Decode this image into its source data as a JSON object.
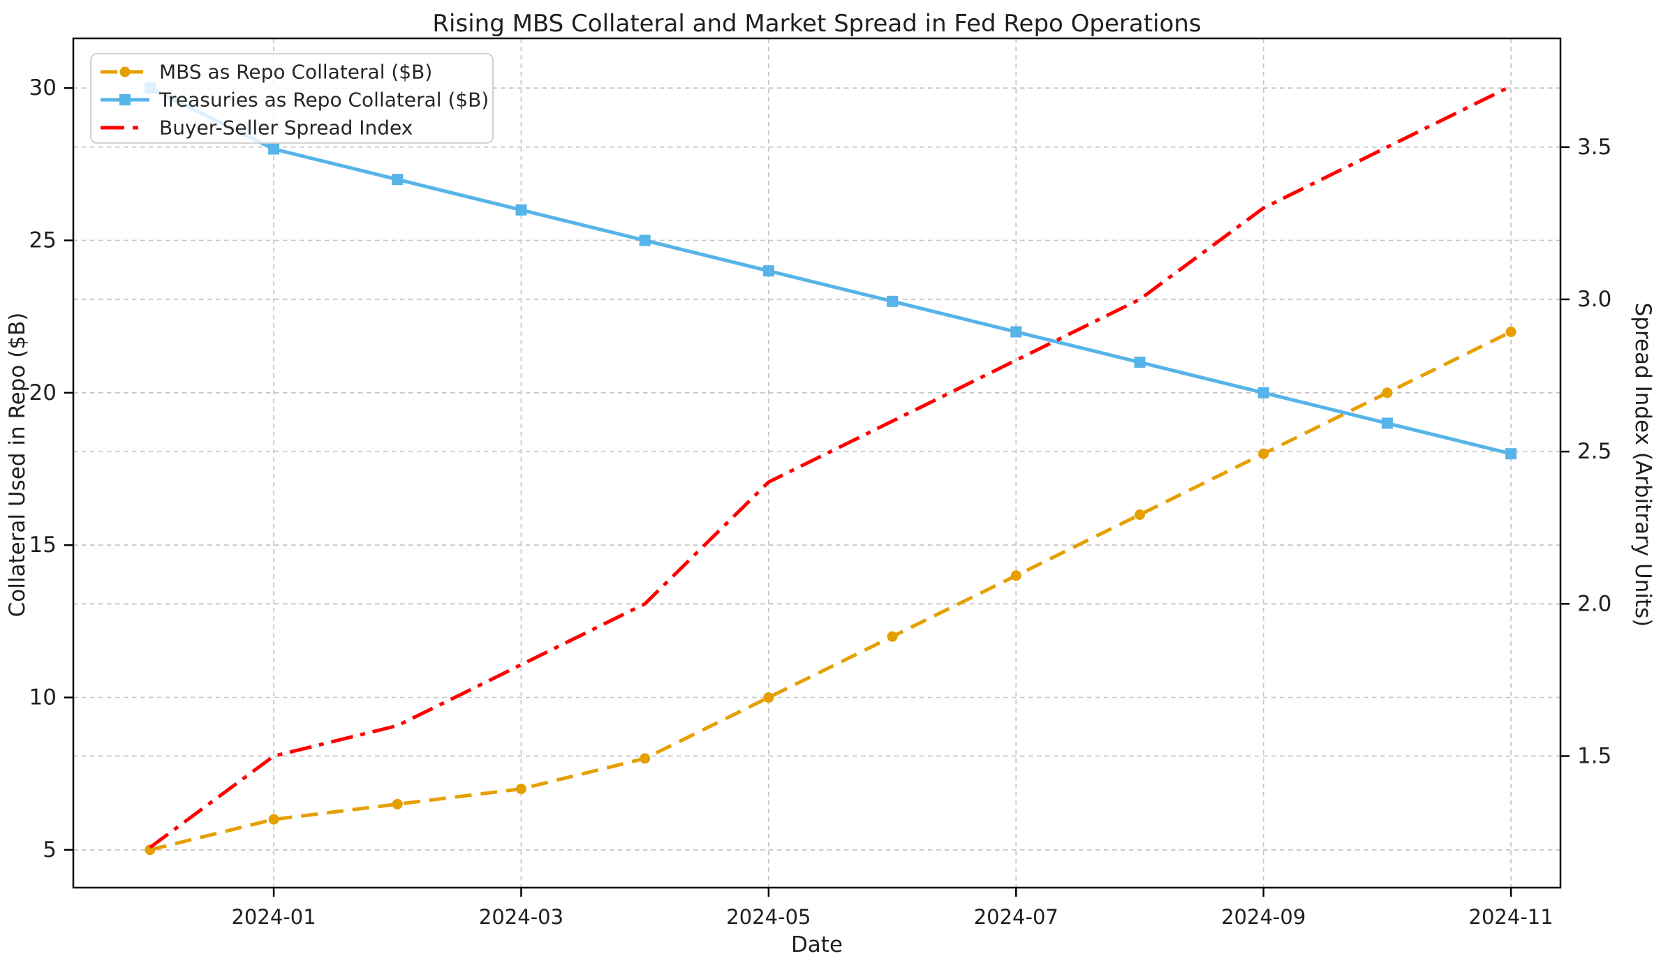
{
  "figure": {
    "title": "Rising MBS Collateral and Market Spread in Fed Repo Operations"
  },
  "chart_data": {
    "type": "line",
    "title": "Rising MBS Collateral and Market Spread in Fed Repo Operations",
    "xlabel": "Date",
    "ylabel_left": "Collateral Used in Repo ($B)",
    "ylabel_right": "Spread Index (Arbitrary Units)",
    "x": [
      "2023-12",
      "2024-01",
      "2024-02",
      "2024-03",
      "2024-04",
      "2024-05",
      "2024-06",
      "2024-07",
      "2024-08",
      "2024-09",
      "2024-10",
      "2024-11"
    ],
    "x_tick_indices": [
      1,
      3,
      5,
      7,
      9,
      11
    ],
    "x_tick_labels": [
      "2024-01",
      "2024-03",
      "2024-05",
      "2024-07",
      "2024-09",
      "2024-11"
    ],
    "left_ticks": [
      5,
      10,
      15,
      20,
      25,
      30
    ],
    "left_tick_labels": [
      "5",
      "10",
      "15",
      "20",
      "25",
      "30"
    ],
    "right_ticks": [
      1.5,
      2.0,
      2.5,
      3.0,
      3.5
    ],
    "right_tick_labels": [
      "1.5",
      "2.0",
      "2.5",
      "3.0",
      "3.5"
    ],
    "left_ylim": [
      3.76,
      31.63
    ],
    "right_ylim": [
      1.068,
      3.857
    ],
    "grid": true,
    "grid_color": "#c6c6c6",
    "legend_position": "upper left",
    "axis_text_color": "#1f1f1f",
    "spine_color": "#000000",
    "series": [
      {
        "name": "MBS as Repo Collateral ($B)",
        "axis": "left",
        "color": "#E69F00",
        "line_style": "dashed",
        "marker": "circle",
        "values": [
          5,
          6,
          6.5,
          7,
          8,
          10,
          12,
          14,
          16,
          18,
          20,
          22
        ]
      },
      {
        "name": "Treasuries as Repo Collateral ($B)",
        "axis": "left",
        "color": "#56B4E9",
        "line_style": "solid",
        "marker": "square",
        "values": [
          30,
          28,
          27,
          26,
          25,
          24,
          23,
          22,
          21,
          20,
          19,
          18
        ]
      },
      {
        "name": "Buyer-Seller Spread Index",
        "axis": "right",
        "color": "#FF0000",
        "line_style": "dashdot",
        "marker": "none",
        "values": [
          1.2,
          1.5,
          1.6,
          1.8,
          2.0,
          2.4,
          2.6,
          2.8,
          3.0,
          3.3,
          3.5,
          3.7
        ]
      }
    ]
  }
}
